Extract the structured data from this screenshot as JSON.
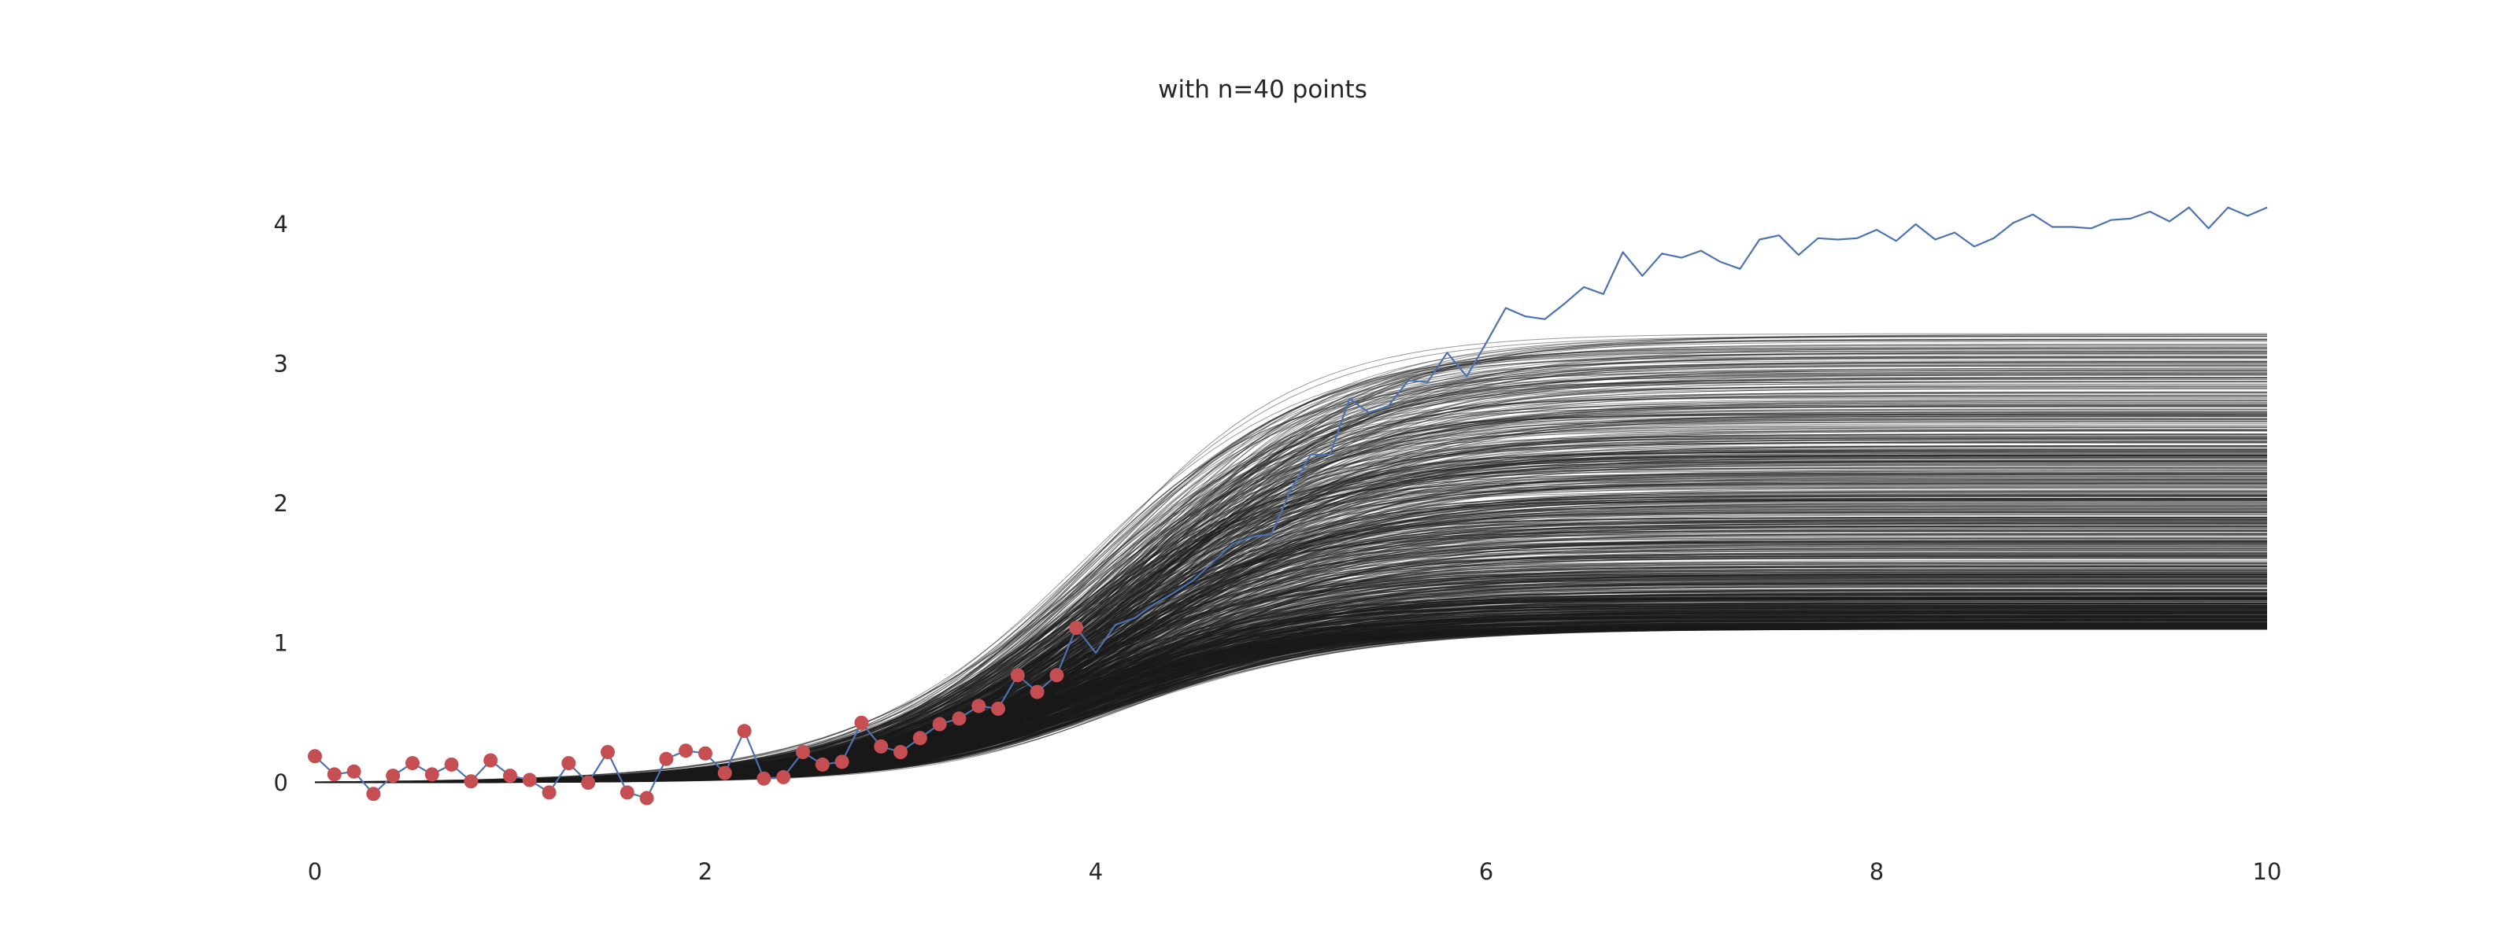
{
  "chart_data": {
    "type": "line",
    "title": "with n=40 points",
    "xlabel": "",
    "ylabel": "",
    "xlim": [
      0,
      10
    ],
    "ylim": [
      -0.5,
      4.5
    ],
    "grid": false,
    "xticks": [
      0,
      2,
      4,
      6,
      8,
      10
    ],
    "yticks": [
      0,
      1,
      2,
      3,
      4
    ],
    "xtick_labels": [
      "0",
      "2",
      "4",
      "6",
      "8",
      "10"
    ],
    "ytick_labels": [
      "0",
      "1",
      "2",
      "3",
      "4"
    ],
    "colors": {
      "true_line": "#4c72b0",
      "observed_points": "#c44e52",
      "posterior_curves": "#1a1a1a",
      "tick_text": "#262626"
    },
    "posterior_samples": {
      "description": "sigmoid curves from fitted model",
      "asymptote_range": [
        1.1,
        3.22
      ],
      "midpoint_range": [
        3.65,
        4.2
      ],
      "count": 1000
    },
    "series": [
      {
        "name": "",
        "kind": "true_function",
        "x": [
          0.0,
          0.1,
          0.2,
          0.3,
          0.4,
          0.5,
          0.6,
          0.7,
          0.8,
          0.9,
          1.0,
          1.1,
          1.2,
          1.3,
          1.4,
          1.5,
          1.6,
          1.7,
          1.8,
          1.9,
          2.0,
          2.1,
          2.2,
          2.3,
          2.4,
          2.5,
          2.6,
          2.7,
          2.8,
          2.9,
          3.0,
          3.1,
          3.2,
          3.3,
          3.4,
          3.5,
          3.6,
          3.7,
          3.8,
          3.9,
          4.0,
          4.1,
          4.2,
          4.3,
          4.4,
          4.5,
          4.6,
          4.7,
          4.8,
          4.9,
          5.0,
          5.1,
          5.2,
          5.3,
          5.4,
          5.5,
          5.6,
          5.7,
          5.8,
          5.9,
          6.0,
          6.1,
          6.2,
          6.3,
          6.4,
          6.5,
          6.6,
          6.7,
          6.8,
          6.9,
          7.0,
          7.1,
          7.2,
          7.3,
          7.4,
          7.5,
          7.6,
          7.7,
          7.8,
          7.9,
          8.0,
          8.1,
          8.2,
          8.3,
          8.4,
          8.5,
          8.6,
          8.7,
          8.8,
          8.9,
          9.0,
          9.1,
          9.2,
          9.3,
          9.4,
          9.5,
          9.6,
          9.7,
          9.8,
          9.9,
          10.0
        ],
        "y": [
          0.19,
          0.06,
          0.08,
          -0.08,
          0.05,
          0.14,
          0.06,
          0.13,
          0.01,
          0.16,
          0.05,
          0.02,
          -0.07,
          0.14,
          0.0,
          0.22,
          -0.07,
          -0.11,
          0.17,
          0.23,
          0.21,
          0.07,
          0.37,
          0.03,
          0.04,
          0.22,
          0.13,
          0.15,
          0.43,
          0.26,
          0.22,
          0.32,
          0.42,
          0.46,
          0.55,
          0.53,
          0.77,
          0.65,
          0.77,
          1.11,
          0.93,
          1.13,
          1.18,
          1.28,
          1.36,
          1.45,
          1.58,
          1.71,
          1.76,
          1.78,
          2.1,
          2.35,
          2.35,
          2.75,
          2.65,
          2.7,
          2.88,
          2.87,
          3.08,
          2.91,
          3.15,
          3.4,
          3.34,
          3.32,
          3.43,
          3.55,
          3.5,
          3.8,
          3.63,
          3.79,
          3.76,
          3.81,
          3.73,
          3.68,
          3.89,
          3.92,
          3.78,
          3.9,
          3.89,
          3.9,
          3.96,
          3.88,
          4.0,
          3.89,
          3.94,
          3.84,
          3.9,
          4.01,
          4.07,
          3.98,
          3.98,
          3.97,
          4.03,
          4.04,
          4.09,
          4.02,
          4.12,
          3.97,
          4.12,
          4.06,
          4.12
        ]
      },
      {
        "name": "",
        "kind": "observations",
        "x": [
          0.0,
          0.1,
          0.2,
          0.3,
          0.4,
          0.5,
          0.6,
          0.7,
          0.8,
          0.9,
          1.0,
          1.1,
          1.2,
          1.3,
          1.4,
          1.5,
          1.6,
          1.7,
          1.8,
          1.9,
          2.0,
          2.1,
          2.2,
          2.3,
          2.4,
          2.5,
          2.6,
          2.7,
          2.8,
          2.9,
          3.0,
          3.1,
          3.2,
          3.3,
          3.4,
          3.5,
          3.6,
          3.7,
          3.8,
          3.9
        ],
        "y": [
          0.19,
          0.06,
          0.08,
          -0.08,
          0.05,
          0.14,
          0.06,
          0.13,
          0.01,
          0.16,
          0.05,
          0.02,
          -0.07,
          0.14,
          0.0,
          0.22,
          -0.07,
          -0.11,
          0.17,
          0.23,
          0.21,
          0.07,
          0.37,
          0.03,
          0.04,
          0.22,
          0.13,
          0.15,
          0.43,
          0.26,
          0.22,
          0.32,
          0.42,
          0.46,
          0.55,
          0.53,
          0.77,
          0.65,
          0.77,
          1.11
        ]
      }
    ]
  }
}
